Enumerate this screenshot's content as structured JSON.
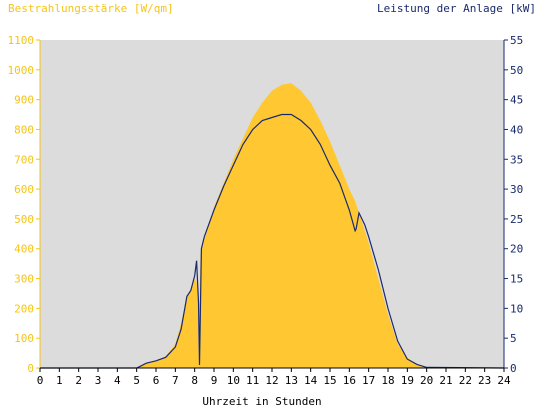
{
  "chart_data": {
    "type": "area",
    "title_left": "Bestrahlungsstärke [W/qm]",
    "title_right": "Leistung der Anlage [kW]",
    "xlabel": "Uhrzeit in Stunden",
    "xlim": [
      0,
      24
    ],
    "x_ticks": [
      "0",
      "1",
      "2",
      "3",
      "4",
      "5",
      "6",
      "7",
      "8",
      "9",
      "10",
      "11",
      "12",
      "13",
      "14",
      "15",
      "16",
      "17",
      "18",
      "19",
      "20",
      "21",
      "22",
      "23",
      "24"
    ],
    "y_left": {
      "lim": [
        0,
        1100
      ],
      "ticks": [
        "0",
        "100",
        "200",
        "300",
        "400",
        "500",
        "600",
        "700",
        "800",
        "900",
        "1000",
        "1100"
      ],
      "color": "#f5c518"
    },
    "y_right": {
      "lim": [
        0,
        55
      ],
      "ticks": [
        "0",
        "5",
        "10",
        "15",
        "20",
        "25",
        "30",
        "35",
        "40",
        "45",
        "50",
        "55"
      ],
      "color": "#1a2a6c"
    },
    "grid": false,
    "background": "#dcdcdc",
    "series": [
      {
        "axis": "left",
        "style": "area",
        "color": "#ffc832",
        "x": [
          0,
          5.0,
          5.5,
          6.0,
          6.5,
          7.0,
          7.3,
          7.6,
          7.8,
          8.0,
          8.15,
          8.2,
          8.3,
          8.4,
          8.7,
          9.0,
          9.5,
          10.0,
          10.5,
          11.0,
          11.5,
          12.0,
          12.5,
          13.0,
          13.5,
          14.0,
          14.5,
          15.0,
          15.5,
          16.0,
          16.3,
          16.5,
          17.0,
          17.5,
          18.0,
          18.5,
          19.0,
          19.5,
          20.0,
          24
        ],
        "y": [
          0,
          0,
          15,
          25,
          40,
          80,
          150,
          240,
          260,
          300,
          280,
          30,
          380,
          410,
          470,
          540,
          620,
          700,
          770,
          840,
          890,
          930,
          950,
          955,
          930,
          890,
          830,
          760,
          680,
          600,
          560,
          520,
          420,
          300,
          180,
          80,
          35,
          10,
          2,
          0
        ]
      },
      {
        "axis": "right",
        "style": "line",
        "color": "#1a2a6c",
        "x": [
          0,
          5.0,
          5.5,
          6.0,
          6.5,
          7.0,
          7.3,
          7.6,
          7.8,
          8.0,
          8.1,
          8.2,
          8.25,
          8.35,
          8.5,
          9.0,
          9.5,
          10.0,
          10.5,
          11.0,
          11.5,
          12.0,
          12.5,
          13.0,
          13.5,
          14.0,
          14.5,
          15.0,
          15.5,
          16.0,
          16.3,
          16.35,
          16.5,
          16.8,
          17.0,
          17.5,
          18.0,
          18.5,
          19.0,
          19.5,
          20.0,
          24
        ],
        "y": [
          0,
          0,
          0.8,
          1.2,
          1.8,
          3.5,
          6.5,
          12,
          13,
          15.5,
          18,
          11,
          0.5,
          20,
          22,
          26.5,
          30.5,
          34,
          37.5,
          40,
          41.5,
          42,
          42.5,
          42.5,
          41.5,
          40,
          37.5,
          34,
          31,
          26.5,
          23,
          23.3,
          26,
          24,
          22,
          16.5,
          10,
          4.5,
          1.5,
          0.6,
          0.1,
          0
        ]
      }
    ]
  }
}
